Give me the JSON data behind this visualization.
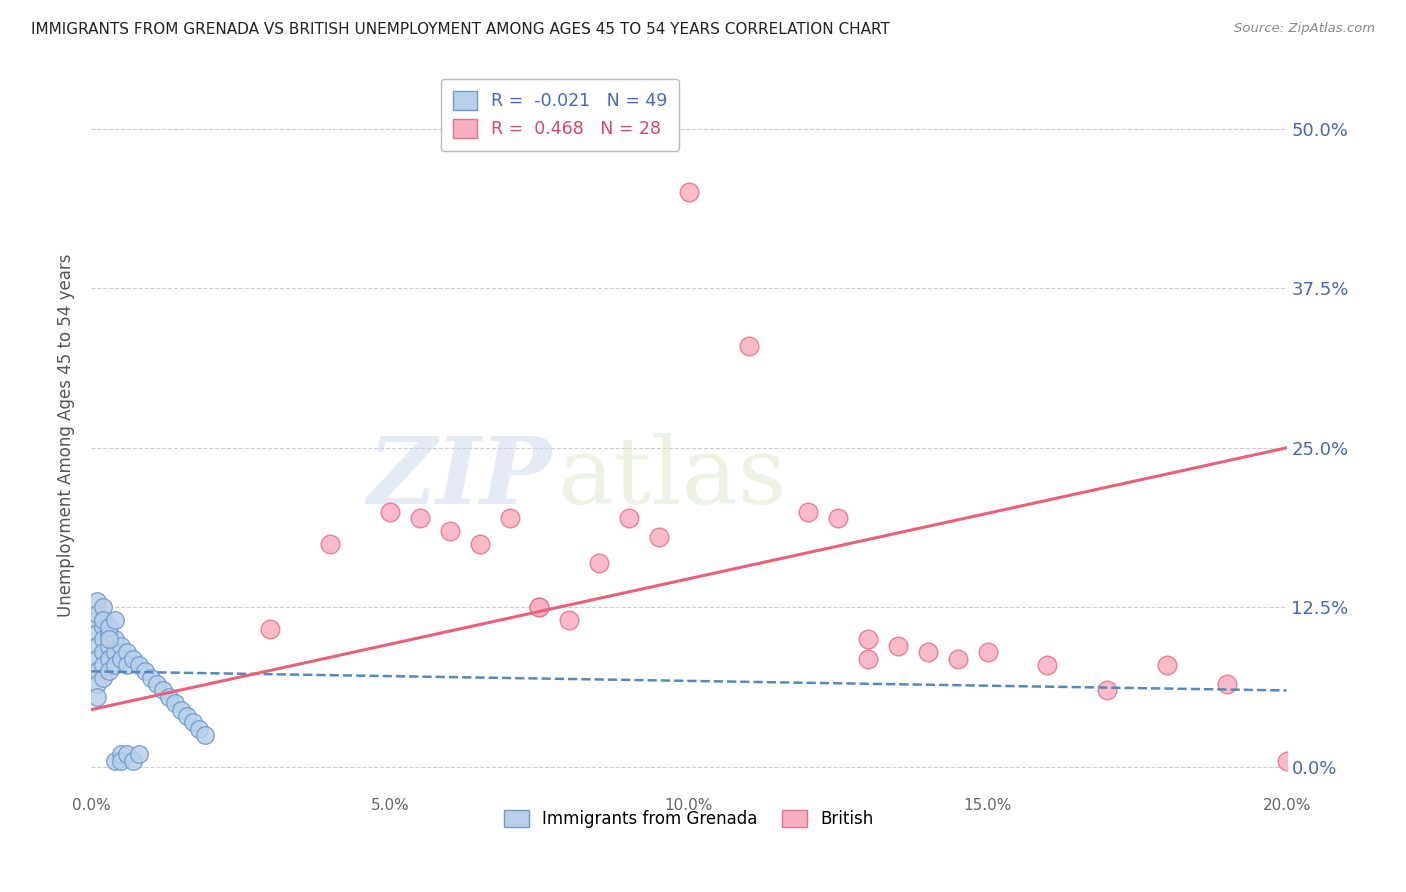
{
  "title": "IMMIGRANTS FROM GRENADA VS BRITISH UNEMPLOYMENT AMONG AGES 45 TO 54 YEARS CORRELATION CHART",
  "source": "Source: ZipAtlas.com",
  "ylabel": "Unemployment Among Ages 45 to 54 years",
  "xlim": [
    0.0,
    0.2
  ],
  "ylim": [
    -0.02,
    0.54
  ],
  "yticks": [
    0.0,
    0.125,
    0.25,
    0.375,
    0.5
  ],
  "ytick_labels": [
    "0.0%",
    "12.5%",
    "25.0%",
    "37.5%",
    "50.0%"
  ],
  "xticks": [
    0.0,
    0.05,
    0.1,
    0.15,
    0.2
  ],
  "xtick_labels": [
    "0.0%",
    "5.0%",
    "10.0%",
    "15.0%",
    "20.0%"
  ],
  "legend_label1": "Immigrants from Grenada",
  "legend_label2": "British",
  "R1": -0.021,
  "N1": 49,
  "R2": 0.468,
  "N2": 28,
  "color1": "#b8d0ea",
  "color2": "#f8b0c0",
  "edge_color1": "#7099cc",
  "edge_color2": "#e8708a",
  "line_color1": "#5588bb",
  "line_color2": "#e8607a",
  "watermark_zip": "ZIP",
  "watermark_atlas": "atlas",
  "blue_scatter_x": [
    0.001,
    0.001,
    0.001,
    0.001,
    0.001,
    0.001,
    0.001,
    0.002,
    0.002,
    0.002,
    0.002,
    0.002,
    0.003,
    0.003,
    0.003,
    0.003,
    0.004,
    0.004,
    0.004,
    0.005,
    0.005,
    0.006,
    0.006,
    0.007,
    0.008,
    0.009,
    0.01,
    0.011,
    0.012,
    0.013,
    0.014,
    0.015,
    0.016,
    0.017,
    0.018,
    0.019,
    0.001,
    0.001,
    0.002,
    0.002,
    0.003,
    0.003,
    0.004,
    0.004,
    0.005,
    0.005,
    0.006,
    0.007,
    0.008
  ],
  "blue_scatter_y": [
    0.115,
    0.105,
    0.095,
    0.085,
    0.075,
    0.065,
    0.055,
    0.11,
    0.1,
    0.09,
    0.08,
    0.07,
    0.105,
    0.095,
    0.085,
    0.075,
    0.1,
    0.09,
    0.08,
    0.095,
    0.085,
    0.09,
    0.08,
    0.085,
    0.08,
    0.075,
    0.07,
    0.065,
    0.06,
    0.055,
    0.05,
    0.045,
    0.04,
    0.035,
    0.03,
    0.025,
    0.13,
    0.12,
    0.125,
    0.115,
    0.11,
    0.1,
    0.115,
    0.005,
    0.01,
    0.005,
    0.01,
    0.005,
    0.01
  ],
  "pink_scatter_x": [
    0.03,
    0.04,
    0.05,
    0.055,
    0.06,
    0.065,
    0.07,
    0.075,
    0.08,
    0.085,
    0.09,
    0.095,
    0.1,
    0.11,
    0.12,
    0.125,
    0.13,
    0.135,
    0.14,
    0.145,
    0.15,
    0.16,
    0.17,
    0.18,
    0.19,
    0.2,
    0.075,
    0.13
  ],
  "pink_scatter_y": [
    0.108,
    0.175,
    0.2,
    0.195,
    0.185,
    0.175,
    0.195,
    0.125,
    0.115,
    0.16,
    0.195,
    0.18,
    0.45,
    0.33,
    0.2,
    0.195,
    0.1,
    0.095,
    0.09,
    0.085,
    0.09,
    0.08,
    0.06,
    0.08,
    0.065,
    0.005,
    0.125,
    0.085
  ],
  "blue_trend_x": [
    0.0,
    0.2
  ],
  "blue_trend_y": [
    0.075,
    0.06
  ],
  "pink_trend_x": [
    0.0,
    0.2
  ],
  "pink_trend_y": [
    0.045,
    0.25
  ]
}
